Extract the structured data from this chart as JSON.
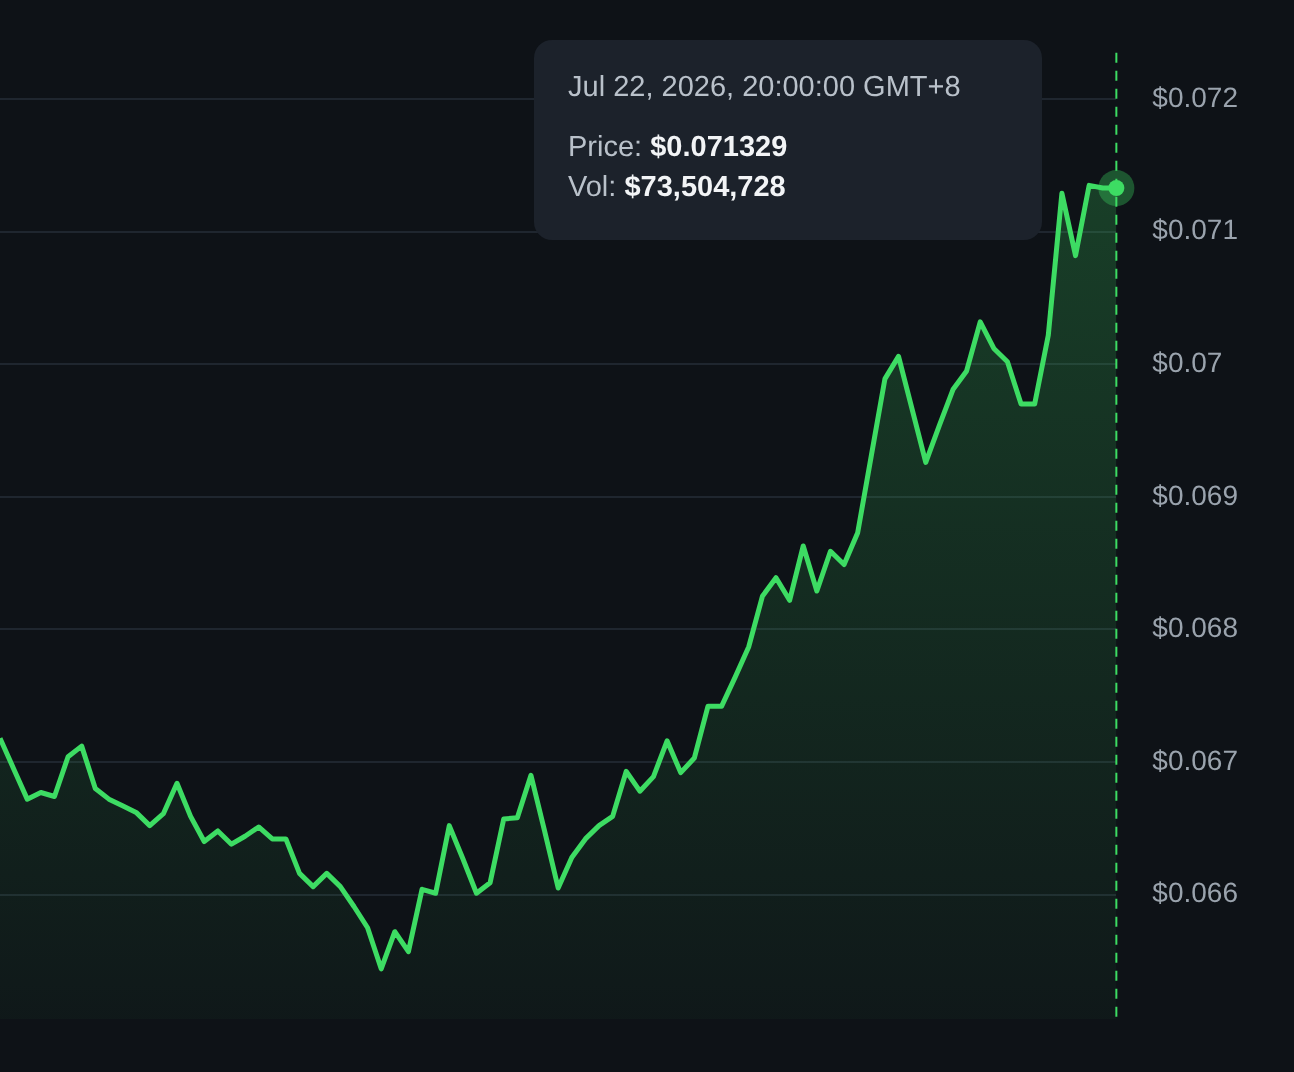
{
  "chart_data": {
    "type": "area",
    "categories": [
      null,
      null,
      null,
      null,
      null,
      null,
      null,
      null,
      null,
      null,
      null,
      null,
      null,
      null,
      null,
      null,
      null,
      null,
      null,
      null,
      null,
      null,
      null,
      null,
      null,
      null,
      null,
      null,
      null,
      null,
      null,
      null,
      null,
      null,
      null,
      null,
      null,
      null,
      null,
      null,
      null,
      null,
      null,
      null,
      null,
      null,
      null,
      null,
      null,
      null,
      null,
      null,
      null,
      null,
      null,
      null,
      null,
      null,
      null,
      null,
      null,
      null,
      null,
      null,
      null,
      null,
      null,
      null,
      null,
      null,
      null,
      null,
      null,
      null,
      null,
      null,
      null,
      null,
      null,
      null,
      null,
      null,
      null
    ],
    "series": [
      {
        "color": "#3ddc63",
        "values": [
          0.06718,
          0.06695,
          0.06672,
          0.06677,
          0.06674,
          0.06704,
          0.06712,
          0.0668,
          0.06672,
          0.06667,
          0.06662,
          0.06652,
          0.06661,
          0.06684,
          0.06659,
          0.0664,
          0.06648,
          0.06638,
          0.06644,
          0.06651,
          0.06642,
          0.06642,
          0.06616,
          0.06606,
          0.06616,
          0.06606,
          0.06591,
          0.06575,
          0.06544,
          0.06572,
          0.06557,
          0.06604,
          0.06601,
          0.06652,
          0.06627,
          0.06601,
          0.06609,
          0.06657,
          0.06658,
          0.0669,
          0.06648,
          0.06605,
          0.06628,
          0.06642,
          0.06652,
          0.06659,
          0.06693,
          0.06678,
          0.06689,
          0.06716,
          0.06692,
          0.06703,
          0.06742,
          0.06742,
          0.06764,
          0.06787,
          0.06825,
          0.06839,
          0.06822,
          0.06863,
          0.06829,
          0.06859,
          0.06849,
          0.06873,
          0.06931,
          0.06989,
          0.07006,
          0.06966,
          0.06926,
          0.06954,
          0.06981,
          0.06995,
          0.07032,
          0.07012,
          0.07002,
          0.0697,
          0.0697,
          0.07022,
          0.07129,
          0.07082,
          0.07135,
          0.07133,
          0.07133
        ]
      }
    ],
    "ylim": [
      0.06506,
      0.07235
    ],
    "yticks": [
      {
        "value": 0.066,
        "label": "$0.066"
      },
      {
        "value": 0.067,
        "label": "$0.067"
      },
      {
        "value": 0.068,
        "label": "$0.068"
      },
      {
        "value": 0.069,
        "label": "$0.069"
      },
      {
        "value": 0.07,
        "label": "$0.07"
      },
      {
        "value": 0.071,
        "label": "$0.071"
      },
      {
        "value": 0.072,
        "label": "$0.072"
      }
    ],
    "grid": "y",
    "legend": false,
    "tick_labels": "y",
    "marker": "none",
    "line_style": "solid",
    "annotations": [
      "Jul 22, 2026, 20:00:00 GMT+8\nPrice: $0.071329\nVol: $73,504,728"
    ]
  }
}
